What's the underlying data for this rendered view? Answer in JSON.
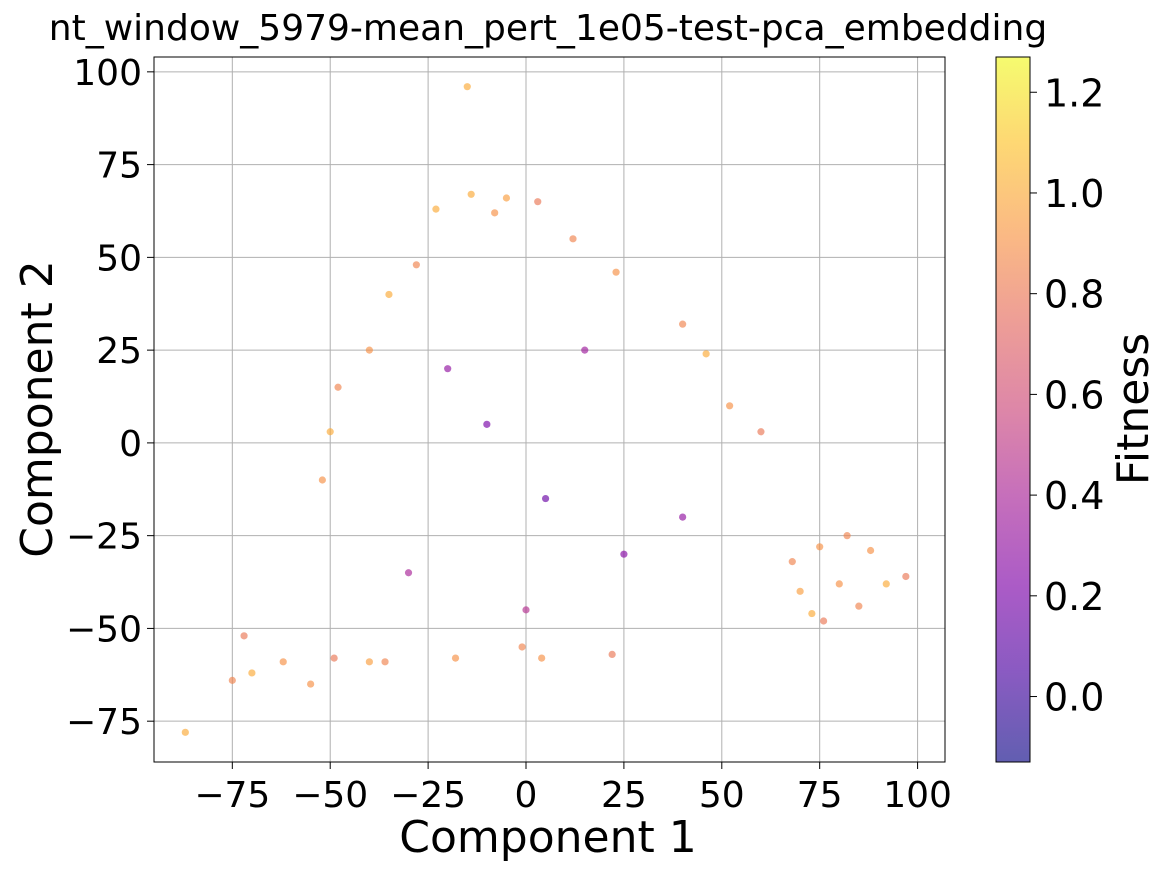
{
  "chart_data": {
    "type": "scatter",
    "title": "nt_window_5979-mean_pert_1e05-test-pca_embedding",
    "xlabel": "Component 1",
    "ylabel": "Component 2",
    "xlim": [
      -95,
      107
    ],
    "ylim": [
      -86,
      104
    ],
    "xticks": [
      -75,
      -50,
      -25,
      0,
      25,
      50,
      75,
      100
    ],
    "yticks": [
      -75,
      -50,
      -25,
      0,
      25,
      50,
      75,
      100
    ],
    "xtick_labels": [
      "−75",
      "−50",
      "−25",
      "0",
      "25",
      "50",
      "75",
      "100"
    ],
    "ytick_labels": [
      "−75",
      "−50",
      "−25",
      "0",
      "25",
      "50",
      "75",
      "100"
    ],
    "grid": true,
    "colormap": "plasma",
    "marker_alpha": 0.65,
    "colorbar": {
      "label": "Fitness",
      "range": [
        -0.13,
        1.27
      ],
      "ticks": [
        0.0,
        0.2,
        0.4,
        0.6,
        0.8,
        1.0,
        1.2
      ],
      "tick_labels": [
        "0.0",
        "0.2",
        "0.4",
        "0.6",
        "0.8",
        "1.0",
        "1.2"
      ]
    },
    "points": [
      {
        "x": -87,
        "y": -78,
        "c": 1.0
      },
      {
        "x": -75,
        "y": -64,
        "c": 0.85
      },
      {
        "x": -70,
        "y": -62,
        "c": 1.0
      },
      {
        "x": -72,
        "y": -52,
        "c": 0.8
      },
      {
        "x": -55,
        "y": -65,
        "c": 0.9
      },
      {
        "x": -15,
        "y": 96,
        "c": 1.0
      },
      {
        "x": 97,
        "y": -36,
        "c": 0.8
      },
      {
        "x": 88,
        "y": -29,
        "c": 0.9
      },
      {
        "x": 85,
        "y": -44,
        "c": 0.85
      },
      {
        "x": 76,
        "y": -48,
        "c": 0.8
      },
      {
        "x": 73,
        "y": -46,
        "c": 1.0
      },
      {
        "x": 80,
        "y": -38,
        "c": 0.9
      },
      {
        "x": 70,
        "y": -40,
        "c": 0.95
      },
      {
        "x": 68,
        "y": -32,
        "c": 0.85
      },
      {
        "x": 75,
        "y": -28,
        "c": 0.9
      },
      {
        "x": 82,
        "y": -25,
        "c": 0.85
      },
      {
        "x": 92,
        "y": -38,
        "c": 1.0
      },
      {
        "x": 4,
        "y": -58,
        "c": 0.9
      },
      {
        "x": -1,
        "y": -55,
        "c": 0.85
      },
      {
        "x": 22,
        "y": -57,
        "c": 0.8
      },
      {
        "x": -18,
        "y": -58,
        "c": 0.9
      },
      {
        "x": -40,
        "y": -59,
        "c": 0.95
      },
      {
        "x": -49,
        "y": -58,
        "c": 0.8
      },
      {
        "x": -36,
        "y": -59,
        "c": 0.85
      },
      {
        "x": -62,
        "y": -59,
        "c": 0.9
      },
      {
        "x": -14,
        "y": 67,
        "c": 1.0
      },
      {
        "x": 3,
        "y": 65,
        "c": 0.8
      },
      {
        "x": -5,
        "y": 66,
        "c": 0.95
      },
      {
        "x": -23,
        "y": 63,
        "c": 1.0
      },
      {
        "x": -8,
        "y": 62,
        "c": 0.9
      },
      {
        "x": 12,
        "y": 55,
        "c": 0.85
      },
      {
        "x": 23,
        "y": 46,
        "c": 0.9
      },
      {
        "x": 40,
        "y": 32,
        "c": 0.85
      },
      {
        "x": 46,
        "y": 24,
        "c": 1.0
      },
      {
        "x": 52,
        "y": 10,
        "c": 0.9
      },
      {
        "x": 60,
        "y": 3,
        "c": 0.8
      },
      {
        "x": -50,
        "y": 3,
        "c": 1.0
      },
      {
        "x": -52,
        "y": -10,
        "c": 0.9
      },
      {
        "x": -48,
        "y": 15,
        "c": 0.85
      },
      {
        "x": -40,
        "y": 25,
        "c": 0.9
      },
      {
        "x": -35,
        "y": 40,
        "c": 1.0
      },
      {
        "x": -28,
        "y": 48,
        "c": 0.85
      },
      {
        "x": -10,
        "y": 5,
        "c": 0.2
      },
      {
        "x": 5,
        "y": -15,
        "c": 0.15
      },
      {
        "x": -20,
        "y": 20,
        "c": 0.3
      },
      {
        "x": 15,
        "y": 25,
        "c": 0.35
      },
      {
        "x": 25,
        "y": -30,
        "c": 0.25
      },
      {
        "x": -30,
        "y": -35,
        "c": 0.4
      },
      {
        "x": 40,
        "y": -20,
        "c": 0.3
      },
      {
        "x": 0,
        "y": -45,
        "c": 0.45
      }
    ]
  }
}
